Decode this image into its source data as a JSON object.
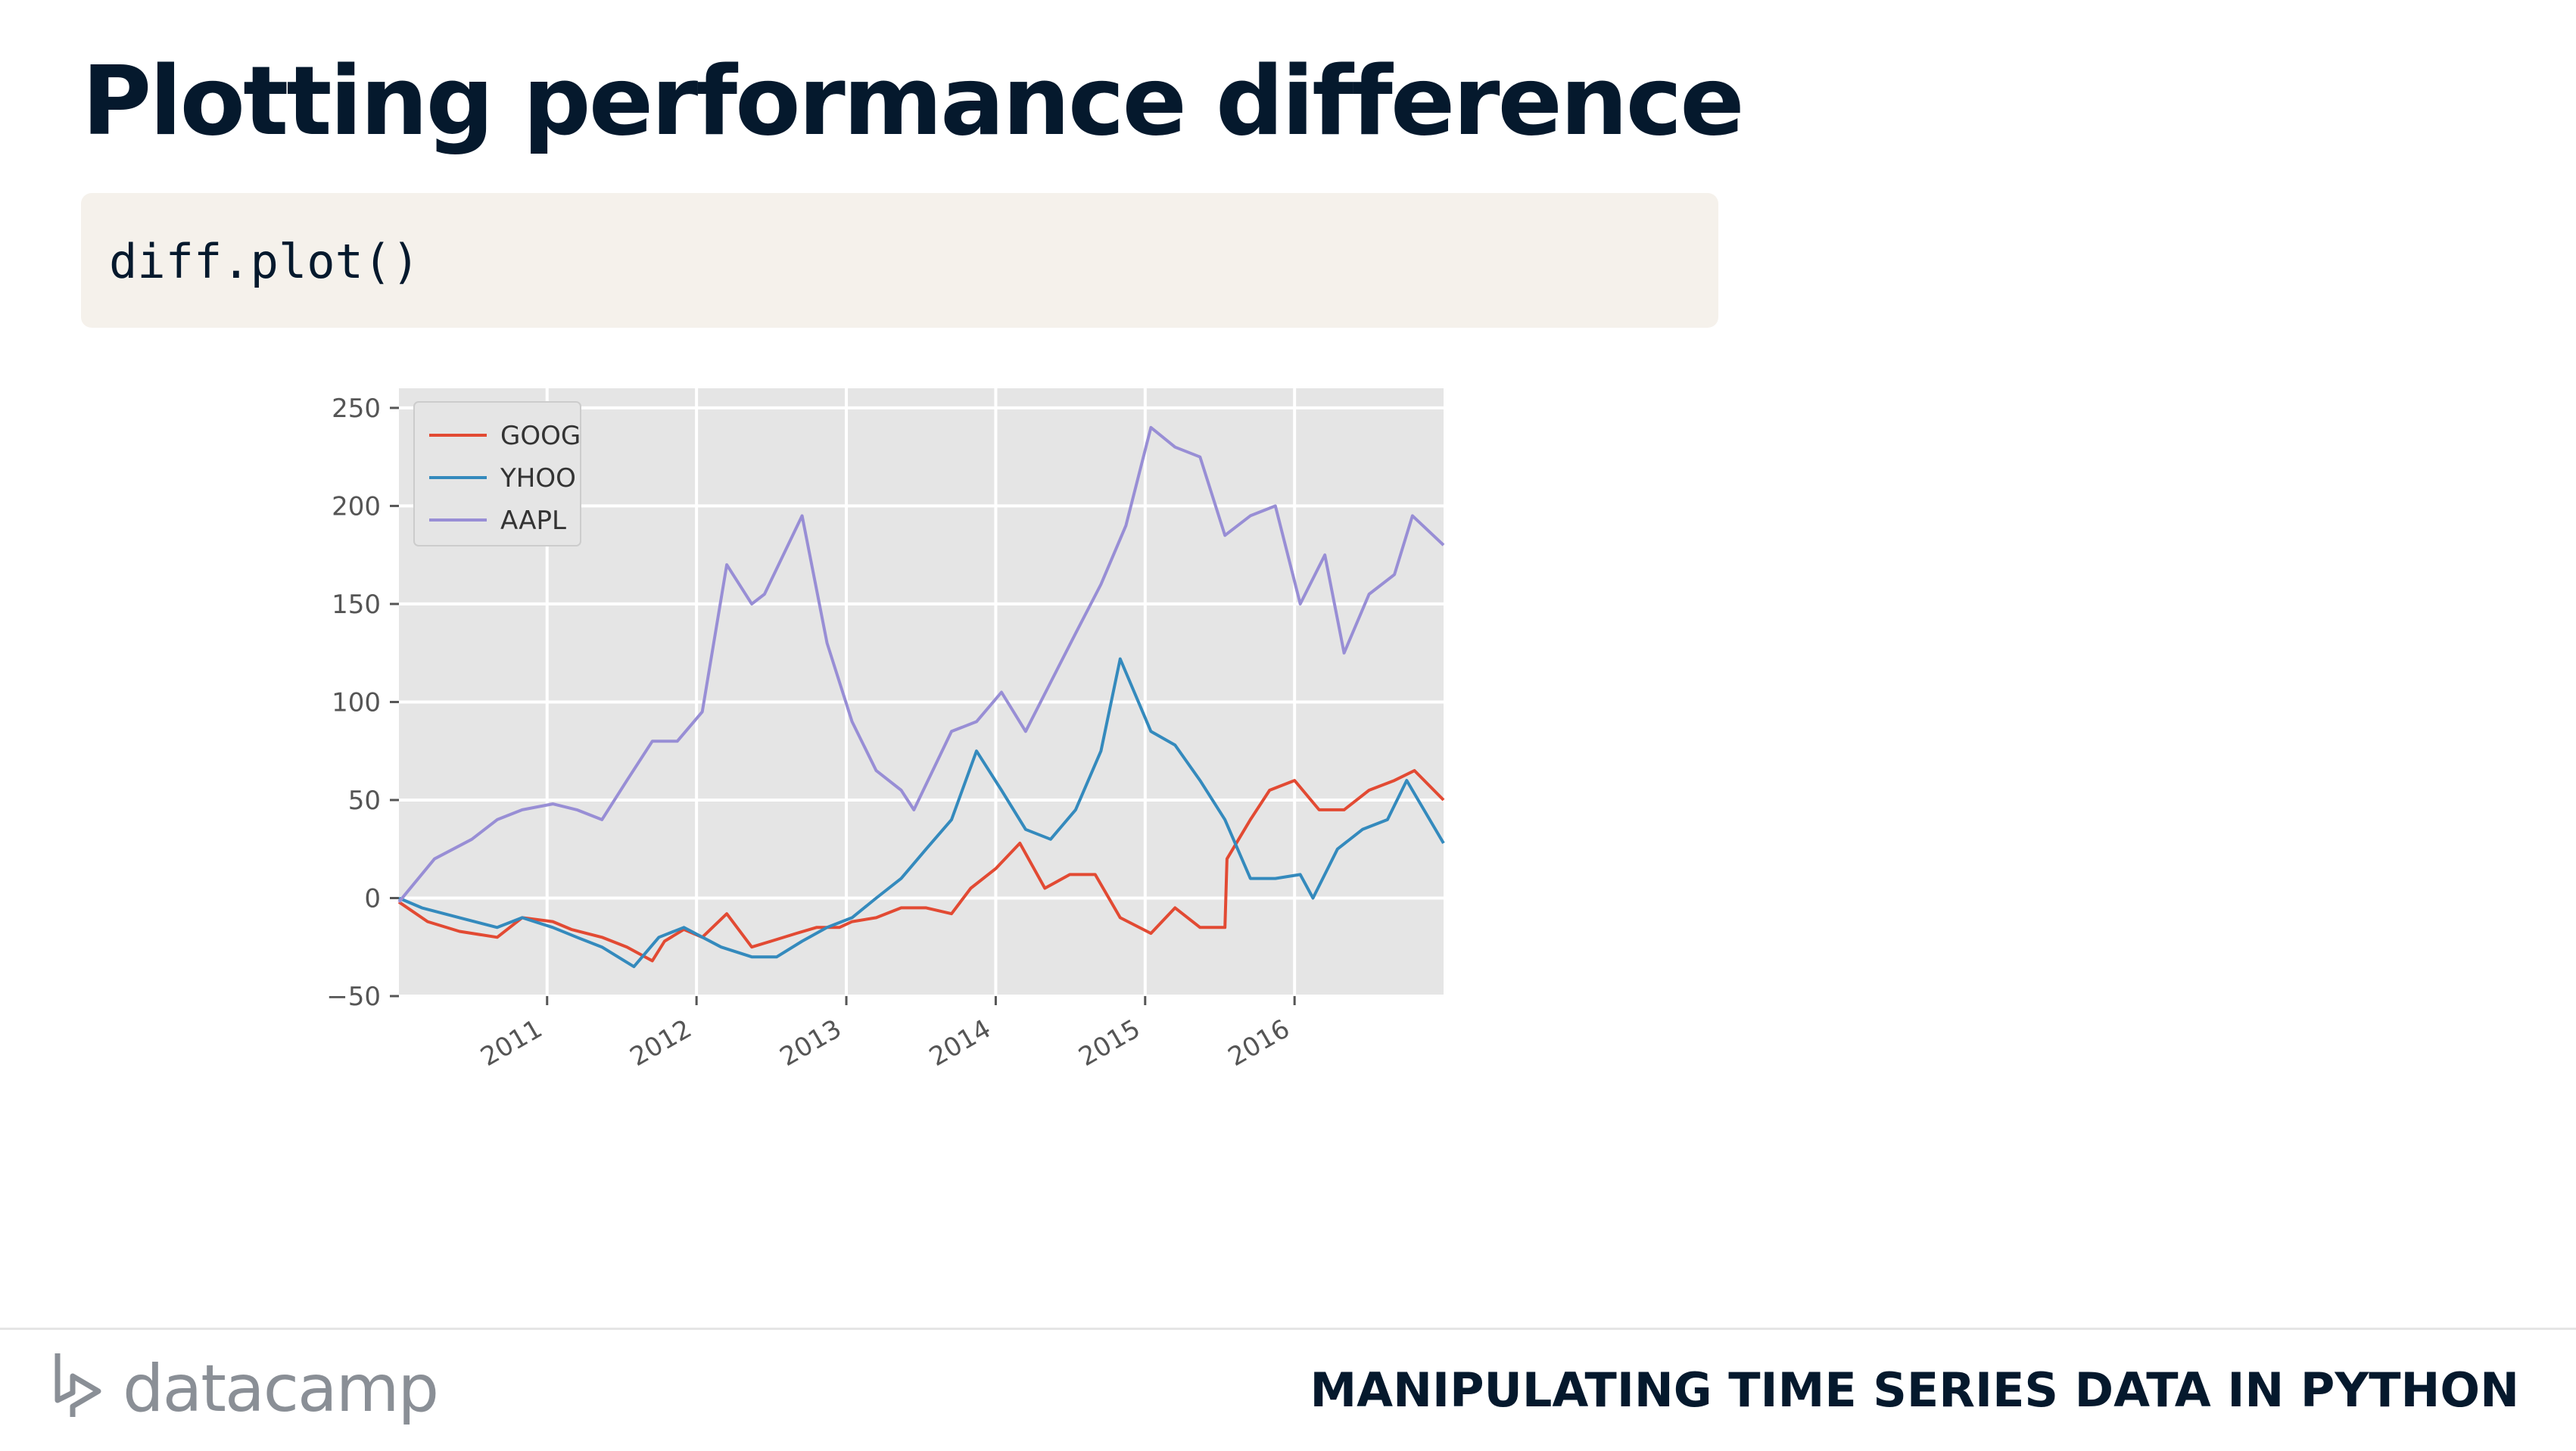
{
  "slide": {
    "title": "Plotting performance difference",
    "code": "diff.plot()",
    "footer_brand": "datacamp",
    "footer_course": "MANIPULATING TIME SERIES DATA IN PYTHON"
  },
  "colors": {
    "title": "#05192d",
    "code_bg": "#f5f1eb",
    "plot_bg": "#e5e5e5",
    "goog": "#e24a33",
    "yhoo": "#348abd",
    "aapl": "#988ed5"
  },
  "chart_data": {
    "type": "line",
    "title": "",
    "xlabel": "",
    "ylabel": "",
    "xlim": [
      "2010-01-04",
      "2016-12-30"
    ],
    "ylim": [
      -50,
      260
    ],
    "yticks": [
      -50,
      0,
      50,
      100,
      150,
      200,
      250
    ],
    "xticks": [
      "2011",
      "2012",
      "2013",
      "2014",
      "2015",
      "2016"
    ],
    "grid": true,
    "legend_position": "top-left",
    "series": [
      {
        "name": "GOOG",
        "color": "#e24a33",
        "points": [
          [
            "2010-01-04",
            -2
          ],
          [
            "2010-03-15",
            -12
          ],
          [
            "2010-06-01",
            -17
          ],
          [
            "2010-09-01",
            -20
          ],
          [
            "2010-11-01",
            -10
          ],
          [
            "2011-01-15",
            -12
          ],
          [
            "2011-03-01",
            -16
          ],
          [
            "2011-05-15",
            -20
          ],
          [
            "2011-07-15",
            -25
          ],
          [
            "2011-09-15",
            -32
          ],
          [
            "2011-10-15",
            -22
          ],
          [
            "2011-12-01",
            -16
          ],
          [
            "2012-01-15",
            -20
          ],
          [
            "2012-03-15",
            -8
          ],
          [
            "2012-05-15",
            -25
          ],
          [
            "2012-07-01",
            -22
          ],
          [
            "2012-09-01",
            -18
          ],
          [
            "2012-10-20",
            -15
          ],
          [
            "2012-12-15",
            -15
          ],
          [
            "2013-01-15",
            -12
          ],
          [
            "2013-03-15",
            -10
          ],
          [
            "2013-05-15",
            -5
          ],
          [
            "2013-07-15",
            -5
          ],
          [
            "2013-09-15",
            -8
          ],
          [
            "2013-11-01",
            5
          ],
          [
            "2014-01-01",
            15
          ],
          [
            "2014-03-01",
            28
          ],
          [
            "2014-05-01",
            5
          ],
          [
            "2014-07-01",
            12
          ],
          [
            "2014-09-01",
            12
          ],
          [
            "2014-11-01",
            -10
          ],
          [
            "2015-01-15",
            -18
          ],
          [
            "2015-03-15",
            -5
          ],
          [
            "2015-05-15",
            -15
          ],
          [
            "2015-07-15",
            -15
          ],
          [
            "2015-07-20",
            20
          ],
          [
            "2015-09-15",
            40
          ],
          [
            "2015-11-01",
            55
          ],
          [
            "2016-01-01",
            60
          ],
          [
            "2016-03-01",
            45
          ],
          [
            "2016-05-01",
            45
          ],
          [
            "2016-07-01",
            55
          ],
          [
            "2016-09-01",
            60
          ],
          [
            "2016-10-20",
            65
          ],
          [
            "2016-12-30",
            50
          ]
        ]
      },
      {
        "name": "YHOO",
        "color": "#348abd",
        "points": [
          [
            "2010-01-04",
            0
          ],
          [
            "2010-03-01",
            -5
          ],
          [
            "2010-06-01",
            -10
          ],
          [
            "2010-09-01",
            -15
          ],
          [
            "2010-11-01",
            -10
          ],
          [
            "2011-01-15",
            -15
          ],
          [
            "2011-03-15",
            -20
          ],
          [
            "2011-05-15",
            -25
          ],
          [
            "2011-08-01",
            -35
          ],
          [
            "2011-10-01",
            -20
          ],
          [
            "2011-12-01",
            -15
          ],
          [
            "2012-03-01",
            -25
          ],
          [
            "2012-05-15",
            -30
          ],
          [
            "2012-07-15",
            -30
          ],
          [
            "2012-09-15",
            -22
          ],
          [
            "2012-11-15",
            -15
          ],
          [
            "2013-01-15",
            -10
          ],
          [
            "2013-03-15",
            0
          ],
          [
            "2013-05-15",
            10
          ],
          [
            "2013-07-15",
            25
          ],
          [
            "2013-09-15",
            40
          ],
          [
            "2013-11-15",
            75
          ],
          [
            "2014-01-15",
            55
          ],
          [
            "2014-03-15",
            35
          ],
          [
            "2014-05-15",
            30
          ],
          [
            "2014-07-15",
            45
          ],
          [
            "2014-09-15",
            75
          ],
          [
            "2014-11-01",
            122
          ],
          [
            "2015-01-15",
            85
          ],
          [
            "2015-03-15",
            78
          ],
          [
            "2015-05-15",
            60
          ],
          [
            "2015-07-15",
            40
          ],
          [
            "2015-09-15",
            10
          ],
          [
            "2015-11-15",
            10
          ],
          [
            "2016-01-15",
            12
          ],
          [
            "2016-02-15",
            0
          ],
          [
            "2016-04-15",
            25
          ],
          [
            "2016-06-15",
            35
          ],
          [
            "2016-08-15",
            40
          ],
          [
            "2016-10-01",
            60
          ],
          [
            "2016-12-30",
            28
          ]
        ]
      },
      {
        "name": "AAPL",
        "color": "#988ed5",
        "points": [
          [
            "2010-01-04",
            -2
          ],
          [
            "2010-04-01",
            20
          ],
          [
            "2010-07-01",
            30
          ],
          [
            "2010-09-01",
            40
          ],
          [
            "2010-11-01",
            45
          ],
          [
            "2011-01-15",
            48
          ],
          [
            "2011-03-15",
            45
          ],
          [
            "2011-05-15",
            40
          ],
          [
            "2011-07-15",
            60
          ],
          [
            "2011-09-15",
            80
          ],
          [
            "2011-11-15",
            80
          ],
          [
            "2012-01-15",
            95
          ],
          [
            "2012-03-15",
            170
          ],
          [
            "2012-05-15",
            150
          ],
          [
            "2012-06-15",
            155
          ],
          [
            "2012-09-15",
            195
          ],
          [
            "2012-11-15",
            130
          ],
          [
            "2013-01-15",
            90
          ],
          [
            "2013-03-15",
            65
          ],
          [
            "2013-05-15",
            55
          ],
          [
            "2013-06-15",
            45
          ],
          [
            "2013-09-15",
            85
          ],
          [
            "2013-11-15",
            90
          ],
          [
            "2014-01-15",
            105
          ],
          [
            "2014-03-15",
            85
          ],
          [
            "2014-05-15",
            110
          ],
          [
            "2014-07-15",
            135
          ],
          [
            "2014-09-15",
            160
          ],
          [
            "2014-11-15",
            190
          ],
          [
            "2015-01-15",
            240
          ],
          [
            "2015-03-15",
            230
          ],
          [
            "2015-05-15",
            225
          ],
          [
            "2015-07-15",
            185
          ],
          [
            "2015-09-15",
            195
          ],
          [
            "2015-11-15",
            200
          ],
          [
            "2016-01-15",
            150
          ],
          [
            "2016-03-15",
            175
          ],
          [
            "2016-05-01",
            125
          ],
          [
            "2016-07-01",
            155
          ],
          [
            "2016-09-01",
            165
          ],
          [
            "2016-10-15",
            195
          ],
          [
            "2016-12-30",
            180
          ]
        ]
      }
    ]
  }
}
